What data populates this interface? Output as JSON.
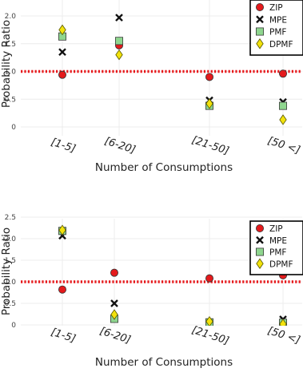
{
  "chart_data": [
    {
      "type": "scatter",
      "xlabel": "Number of Consumptions",
      "ylabel": "Probability Ratio",
      "categories": [
        "[1-5]",
        "[6-20]",
        "[21-50]",
        "[50 <]"
      ],
      "ylim": [
        -0.1,
        2.2
      ],
      "yticks": [
        "0",
        "0.5",
        "1.0",
        "1.5",
        "2.0"
      ],
      "reference_line": {
        "y": 1.0,
        "color": "#e8191c",
        "style": "dotted"
      },
      "grid": true,
      "legend_position": "top-right",
      "series": [
        {
          "name": "ZIP",
          "marker": "circle",
          "color": "#e41a1c",
          "values": [
            0.94,
            1.47,
            0.9,
            0.96
          ]
        },
        {
          "name": "MPE",
          "marker": "x",
          "color": "#111111",
          "values": [
            1.35,
            1.97,
            0.48,
            0.45
          ]
        },
        {
          "name": "PMF",
          "marker": "square",
          "color": "#8fd68f",
          "values": [
            1.63,
            1.55,
            0.38,
            0.38
          ]
        },
        {
          "name": "DPMF",
          "marker": "diamond",
          "color": "#f2e20c",
          "values": [
            1.75,
            1.3,
            0.42,
            0.13
          ]
        }
      ]
    },
    {
      "type": "scatter",
      "xlabel": "Number of Consumptions",
      "ylabel": "Probability Ratio",
      "categories": [
        "[1-5]",
        "[6-20]",
        "[21-50]",
        "[50 <]"
      ],
      "ylim": [
        -0.05,
        2.5
      ],
      "yticks": [
        "0",
        "0.5",
        "1.0",
        "1.5",
        "2.0",
        "2.5"
      ],
      "reference_line": {
        "y": 1.0,
        "color": "#e8191c",
        "style": "dotted"
      },
      "grid": true,
      "legend_position": "top-right",
      "series": [
        {
          "name": "ZIP",
          "marker": "circle",
          "color": "#e41a1c",
          "values": [
            0.82,
            1.21,
            1.08,
            1.15
          ]
        },
        {
          "name": "MPE",
          "marker": "x",
          "color": "#111111",
          "values": [
            2.07,
            0.5,
            0.03,
            0.13
          ]
        },
        {
          "name": "PMF",
          "marker": "square",
          "color": "#8fd68f",
          "values": [
            2.18,
            0.14,
            0.06,
            0.05
          ]
        },
        {
          "name": "DPMF",
          "marker": "diamond",
          "color": "#f2e20c",
          "values": [
            2.2,
            0.24,
            0.08,
            0.02
          ]
        }
      ]
    }
  ]
}
